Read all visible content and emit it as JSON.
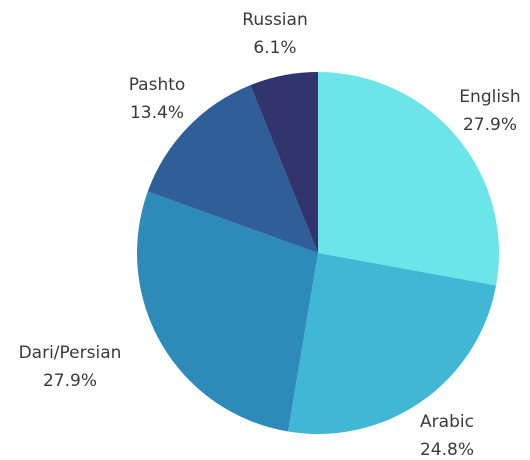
{
  "chart_data": {
    "type": "pie",
    "categories": [
      "English",
      "Arabic",
      "Dari/Persian",
      "Pashto",
      "Russian"
    ],
    "values": [
      27.9,
      24.8,
      27.9,
      13.4,
      6.1
    ],
    "value_labels": [
      "27.9%",
      "24.8%",
      "27.9%",
      "13.4%",
      "6.1%"
    ],
    "colors": [
      "#6be5e8",
      "#41b7d6",
      "#2d8ab9",
      "#2f5e98",
      "#31346d"
    ]
  }
}
